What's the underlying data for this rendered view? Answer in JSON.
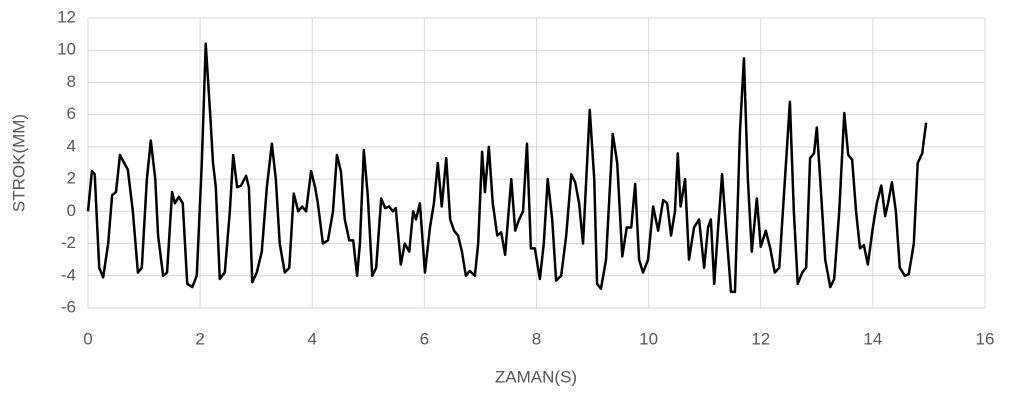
{
  "chart_data": {
    "type": "line",
    "x_label": "ZAMAN(S)",
    "y_label": "STROK(MM)",
    "color": "#000000",
    "grid": true,
    "xlim": [
      0,
      16
    ],
    "xticks": [
      0,
      2,
      4,
      6,
      8,
      10,
      12,
      14,
      16
    ],
    "ylim": [
      -6,
      12
    ],
    "yticks": [
      -6,
      -4,
      -2,
      0,
      2,
      4,
      6,
      8,
      10,
      12
    ],
    "x": [
      0,
      0.07,
      0.12,
      0.2,
      0.27,
      0.36,
      0.43,
      0.5,
      0.57,
      0.66,
      0.71,
      0.8,
      0.89,
      0.96,
      1.05,
      1.12,
      1.2,
      1.25,
      1.34,
      1.41,
      1.5,
      1.55,
      1.62,
      1.69,
      1.77,
      1.86,
      1.94,
      2.03,
      2.1,
      2.18,
      2.23,
      2.28,
      2.35,
      2.44,
      2.53,
      2.59,
      2.66,
      2.73,
      2.82,
      2.87,
      2.93,
      3.01,
      3.1,
      3.19,
      3.28,
      3.35,
      3.42,
      3.51,
      3.59,
      3.67,
      3.75,
      3.82,
      3.89,
      3.98,
      4.05,
      4.1,
      4.19,
      4.28,
      4.37,
      4.44,
      4.51,
      4.58,
      4.66,
      4.73,
      4.8,
      4.85,
      4.92,
      4.99,
      5.07,
      5.14,
      5.23,
      5.3,
      5.37,
      5.44,
      5.49,
      5.58,
      5.65,
      5.73,
      5.8,
      5.85,
      5.92,
      6.01,
      6.1,
      6.17,
      6.24,
      6.31,
      6.39,
      6.46,
      6.53,
      6.6,
      6.67,
      6.74,
      6.81,
      6.9,
      6.96,
      7.03,
      7.08,
      7.15,
      7.22,
      7.3,
      7.37,
      7.44,
      7.55,
      7.62,
      7.69,
      7.76,
      7.83,
      7.9,
      7.97,
      8.06,
      8.13,
      8.2,
      8.28,
      8.35,
      8.44,
      8.53,
      8.62,
      8.69,
      8.76,
      8.83,
      8.95,
      9.03,
      9.08,
      9.15,
      9.24,
      9.36,
      9.44,
      9.53,
      9.61,
      9.69,
      9.76,
      9.83,
      9.9,
      9.99,
      10.08,
      10.17,
      10.26,
      10.33,
      10.4,
      10.47,
      10.52,
      10.57,
      10.65,
      10.72,
      10.81,
      10.9,
      10.99,
      11.06,
      11.11,
      11.17,
      11.24,
      11.31,
      11.38,
      11.47,
      11.54,
      11.63,
      11.7,
      11.77,
      11.84,
      11.93,
      12.0,
      12.09,
      12.17,
      12.25,
      12.33,
      12.45,
      12.52,
      12.59,
      12.66,
      12.74,
      12.81,
      12.88,
      12.95,
      13.0,
      13.06,
      13.15,
      13.24,
      13.31,
      13.4,
      13.49,
      13.56,
      13.63,
      13.7,
      13.77,
      13.84,
      13.91,
      14.0,
      14.07,
      14.15,
      14.22,
      14.27,
      14.34,
      14.41,
      14.48,
      14.57,
      14.64,
      14.73,
      14.8,
      14.88,
      14.95
    ],
    "values": [
      0,
      2.5,
      2.3,
      -3.5,
      -4.1,
      -2,
      1,
      1.2,
      3.5,
      2.9,
      2.6,
      0,
      -3.8,
      -3.5,
      2,
      4.4,
      2,
      -1.5,
      -4,
      -3.8,
      1.2,
      0.5,
      0.9,
      0.5,
      -4.5,
      -4.7,
      -4,
      3,
      10.4,
      6,
      3,
      1.5,
      -4.2,
      -3.8,
      0,
      3.5,
      1.5,
      1.6,
      2.2,
      1.5,
      -4.4,
      -3.8,
      -2.5,
      1.5,
      4.2,
      2,
      -2,
      -3.8,
      -3.5,
      1.1,
      0,
      0.3,
      0,
      2.5,
      1.5,
      0.5,
      -2,
      -1.8,
      0,
      3.5,
      2.5,
      -0.5,
      -1.8,
      -1.8,
      -4,
      -2,
      3.8,
      1,
      -4,
      -3.5,
      0.8,
      0.2,
      0.3,
      0,
      0.2,
      -3.3,
      -2,
      -2.5,
      0,
      -0.5,
      0.5,
      -3.8,
      -1,
      0.5,
      3,
      0.3,
      3.3,
      -0.5,
      -1.2,
      -1.5,
      -2.5,
      -4,
      -3.7,
      -4,
      -2,
      3.7,
      1.2,
      4,
      0.5,
      -1.5,
      -1.3,
      -2.7,
      2,
      -1.2,
      -0.5,
      0,
      4.2,
      -2.3,
      -2.3,
      -4.2,
      -2,
      2,
      -0.5,
      -4.3,
      -4,
      -1.5,
      2.3,
      1.8,
      0.5,
      -2,
      6.3,
      2,
      -4.5,
      -4.8,
      -3,
      4.8,
      3,
      -2.8,
      -1,
      -1,
      1.7,
      -3,
      -3.8,
      -3,
      0.3,
      -1.2,
      0.7,
      0.5,
      -1.5,
      0,
      3.6,
      0.3,
      2,
      -3,
      -1,
      -0.5,
      -3.5,
      -1,
      -0.5,
      -4.5,
      -1,
      2.3,
      -1,
      -5,
      -5,
      5,
      9.5,
      2,
      -2.5,
      0.8,
      -2.2,
      -1.2,
      -2.3,
      -3.8,
      -3.5,
      3,
      6.8,
      0,
      -4.5,
      -3.8,
      -3.5,
      3.3,
      3.6,
      5.2,
      2,
      -3,
      -4.7,
      -4.2,
      0,
      6.1,
      3.5,
      3.2,
      0,
      -2.3,
      -2.1,
      -3.3,
      -1,
      0.5,
      1.6,
      -0.3,
      0.5,
      1.8,
      0,
      -3.5,
      -4,
      -3.9,
      -2,
      3,
      3.6,
      5.5
    ]
  }
}
